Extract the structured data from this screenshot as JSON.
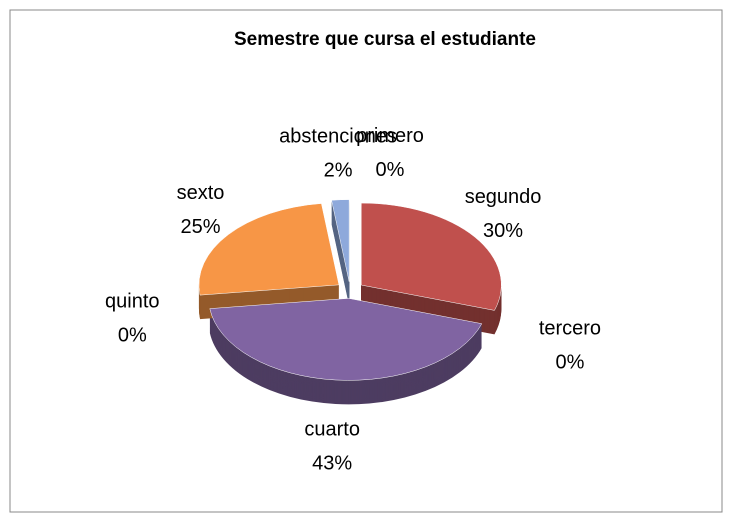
{
  "chart_data": {
    "type": "pie",
    "title": "Semestre que cursa el estudiante",
    "categories": [
      "primero",
      "segundo",
      "tercero",
      "cuarto",
      "quinto",
      "sexto",
      "abstenciones"
    ],
    "values": [
      0,
      30,
      0,
      43,
      0,
      25,
      2
    ],
    "value_labels": [
      "0%",
      "30%",
      "0%",
      "43%",
      "0%",
      "25%",
      "2%"
    ],
    "colors": [
      "#4f81bd",
      "#c0504d",
      "#9bbb59",
      "#8064a2",
      "#4bacc6",
      "#f79646",
      "#8ea9db"
    ]
  }
}
